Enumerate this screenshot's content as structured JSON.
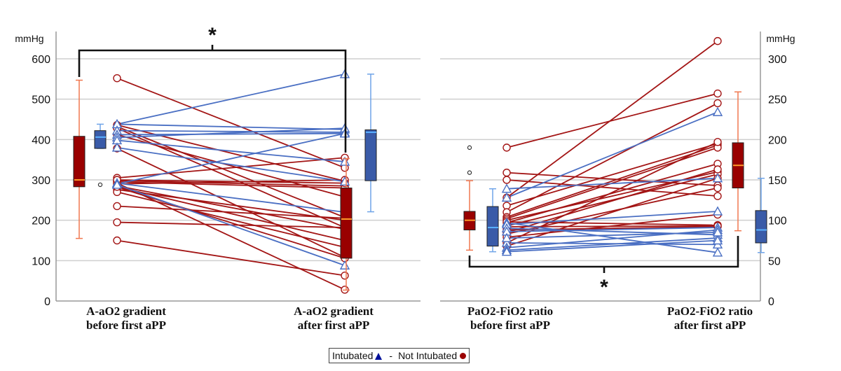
{
  "chart_data": [
    {
      "type": "line",
      "subtype": "paired-lines-with-boxplots",
      "title": "",
      "ylabel": "mmHg",
      "ylim": [
        0,
        600
      ],
      "yticks": [
        0,
        100,
        200,
        300,
        400,
        500,
        600
      ],
      "y_axis_side": "left",
      "grid": true,
      "categories": [
        "A-aO2 gradient\nbefore first aPP",
        "A-aO2 gradient\nafter first aPP"
      ],
      "category_lines": [
        [
          "A-aO2 gradient",
          "before first aPP"
        ],
        [
          "A-aO2 gradient",
          "after first aPP"
        ]
      ],
      "significance": {
        "label": "*",
        "between": [
          "before",
          "after"
        ]
      },
      "boxplots": {
        "before": {
          "not_intubated": {
            "min": 155,
            "q1": 283,
            "median": 300,
            "q3": 408,
            "max": 547
          },
          "intubated": {
            "min": 378,
            "q1": 378,
            "median": 406,
            "q3": 422,
            "max": 438,
            "outliers": [
              288
            ]
          }
        },
        "after": {
          "not_intubated": {
            "min": 27,
            "q1": 106,
            "median": 203,
            "q3": 280,
            "max": 353
          },
          "intubated": {
            "min": 221,
            "q1": 298,
            "median": 418,
            "q3": 424,
            "max": 562
          }
        }
      },
      "series": [
        {
          "name": "Intubated",
          "marker": "triangle",
          "pairs": [
            [
              438,
              562
            ],
            [
              438,
              425
            ],
            [
              422,
              418
            ],
            [
              412,
              415
            ],
            [
              405,
              428
            ],
            [
              398,
              345
            ],
            [
              290,
              415
            ],
            [
              292,
              220
            ],
            [
              288,
              88
            ],
            [
              380,
              296
            ]
          ]
        },
        {
          "name": "Not Intubated",
          "marker": "circle",
          "pairs": [
            [
              552,
              330
            ],
            [
              436,
              297
            ],
            [
              432,
              207
            ],
            [
              428,
              182
            ],
            [
              412,
              258
            ],
            [
              378,
              108
            ],
            [
              305,
              355
            ],
            [
              298,
              285
            ],
            [
              295,
              280
            ],
            [
              290,
              300
            ],
            [
              285,
              178
            ],
            [
              282,
              106
            ],
            [
              276,
              200
            ],
            [
              270,
              133
            ],
            [
              235,
              205
            ],
            [
              195,
              182
            ],
            [
              150,
              63
            ],
            [
              292,
              28
            ],
            [
              283,
              150
            ],
            [
              300,
              292
            ]
          ]
        }
      ]
    },
    {
      "type": "line",
      "subtype": "paired-lines-with-boxplots",
      "title": "",
      "ylabel": "mmHg",
      "ylim": [
        0,
        300
      ],
      "yticks": [
        0,
        50,
        100,
        150,
        200,
        250,
        300
      ],
      "y_axis_side": "right",
      "grid": true,
      "categories": [
        "PaO2-FiO2 ratio\nbefore first aPP",
        "PaO2-FiO2 ratio\nafter first aPP"
      ],
      "category_lines": [
        [
          "PaO2-FiO2 ratio",
          "before first aPP"
        ],
        [
          "PaO2-FiO2 ratio",
          "after first aPP"
        ]
      ],
      "significance": {
        "label": "*",
        "between": [
          "before",
          "after"
        ]
      },
      "boxplots": {
        "before": {
          "not_intubated": {
            "min": 63,
            "q1": 88,
            "median": 100,
            "q3": 111,
            "max": 149,
            "outliers": [
              190,
              159
            ]
          },
          "intubated": {
            "min": 61,
            "q1": 68,
            "median": 91,
            "q3": 117,
            "max": 139
          }
        },
        "after": {
          "not_intubated": {
            "min": 87,
            "q1": 140,
            "median": 168,
            "q3": 196,
            "max": 259
          },
          "intubated": {
            "min": 60,
            "q1": 72,
            "median": 88,
            "q3": 112,
            "max": 152
          }
        }
      },
      "series": [
        {
          "name": "Intubated",
          "marker": "triangle",
          "pairs": [
            [
              139,
              152
            ],
            [
              128,
              234
            ],
            [
              97,
              60
            ],
            [
              95,
              111
            ],
            [
              90,
              82
            ],
            [
              86,
              91
            ],
            [
              72,
              70
            ],
            [
              66,
              88
            ],
            [
              63,
              78
            ],
            [
              61,
              75
            ],
            [
              78,
              85
            ]
          ]
        },
        {
          "name": "Not Intubated",
          "marker": "circle",
          "pairs": [
            [
              190,
              257
            ],
            [
              159,
              143
            ],
            [
              150,
              130
            ],
            [
              128,
              322
            ],
            [
              118,
              195
            ],
            [
              110,
              245
            ],
            [
              104,
              193
            ],
            [
              102,
              190
            ],
            [
              100,
              160
            ],
            [
              97,
              170
            ],
            [
              93,
              157
            ],
            [
              88,
              92
            ],
            [
              85,
              163
            ],
            [
              83,
              140
            ],
            [
              79,
              107
            ],
            [
              72,
              197
            ],
            [
              68,
              152
            ],
            [
              98,
              94
            ],
            [
              92,
              93
            ]
          ]
        }
      ]
    }
  ],
  "legend": {
    "intubated_label": "Intubated",
    "separator": "-",
    "not_intubated_label": "Not Intubated",
    "intubated_color": "#00109a",
    "not_intubated_color": "#9b0000"
  },
  "colors": {
    "not_intubated_line": "#a31515",
    "intubated_line": "#4a6fc3",
    "not_intubated_box": "#990000",
    "intubated_box": "#3a5ba8",
    "not_intubated_whisker": "#f07850",
    "intubated_whisker": "#6fa4e8",
    "median_not_intubated": "#ff9b2a",
    "median_intubated": "#5ab1ff",
    "grid": "#cfcfcf"
  }
}
